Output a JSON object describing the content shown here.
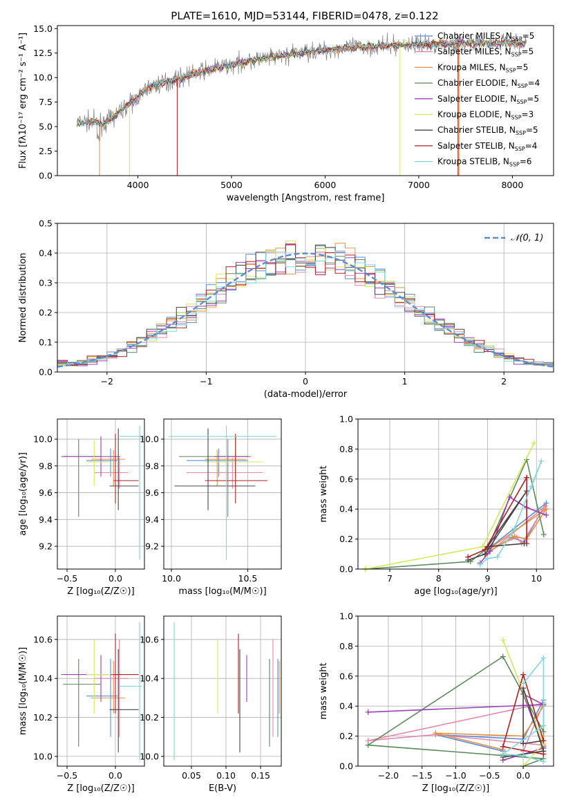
{
  "figure": {
    "title": "PLATE=1610, MJD=53144, FIBERID=0478, z=0.122"
  },
  "colors": {
    "chabrier_miles": "#5b8bd9",
    "salpeter_miles": "#e887a6",
    "kroupa_miles": "#e69040",
    "chabrier_elodie": "#5a8a5a",
    "salpeter_elodie": "#9b3fb8",
    "kroupa_elodie": "#d4e85a",
    "chabrier_stelib": "#444444",
    "salpeter_stelib": "#b01e1e",
    "kroupa_stelib": "#7fd6dc",
    "gaussian": "#5b8bd9"
  },
  "chart_data": [
    {
      "id": "spectrum",
      "type": "line",
      "title": "PLATE=1610, MJD=53144, FIBERID=0478, z=0.122",
      "xlabel": "wavelength [Angstrom, rest frame]",
      "ylabel": "Flux [fλ10⁻¹⁷ erg cm⁻² s⁻¹ A⁻¹]",
      "xlim": [
        3140,
        8440
      ],
      "ylim": [
        0,
        15.3
      ],
      "xticks": [
        "4000",
        "5000",
        "6000",
        "7000",
        "8000"
      ],
      "yticks": [
        "0.0",
        "2.5",
        "5.0",
        "7.5",
        "10.0",
        "12.5",
        "15.0"
      ],
      "grid": false,
      "legend": "right",
      "legend_entries": [
        "Chabrier MILES, N_SSP=5",
        "Salpeter MILES, N_SSP=5",
        "Kroupa MILES, N_SSP=5",
        "Chabrier ELODIE, N_SSP=4",
        "Salpeter ELODIE, N_SSP=5",
        "Kroupa ELODIE, N_SSP=3",
        "Chabrier STELIB, N_SSP=5",
        "Salpeter STELIB, N_SSP=4",
        "Kroupa STELIB, N_SSP=6"
      ],
      "continuum": {
        "x": [
          3350,
          3500,
          3650,
          3800,
          3950,
          4100,
          4250,
          4400,
          4600,
          4800,
          5000,
          5200,
          5400,
          5600,
          5800,
          6000,
          6200,
          6400,
          6600,
          6800,
          7000,
          7200,
          7400,
          7600,
          7800,
          8000,
          8150
        ],
        "y": [
          5.4,
          5.5,
          5.3,
          6.5,
          7.6,
          8.9,
          9.4,
          9.8,
          10.4,
          10.9,
          11.3,
          11.7,
          12.0,
          12.3,
          12.6,
          12.8,
          13.0,
          13.1,
          13.2,
          13.3,
          13.4,
          13.4,
          13.5,
          13.5,
          13.5,
          13.6,
          13.4
        ]
      }
    },
    {
      "id": "residuals",
      "type": "bar",
      "xlabel": "(data-model)/error",
      "ylabel": "Normed distribution",
      "xlim": [
        -2.5,
        2.5
      ],
      "ylim": [
        0,
        0.5
      ],
      "xticks": [
        "−2",
        "−1",
        "0",
        "1",
        "2"
      ],
      "yticks": [
        "0.0",
        "0.1",
        "0.2",
        "0.3",
        "0.4",
        "0.5"
      ],
      "grid": true,
      "legend": "top-right",
      "legend_label": "𝒩(0, 1)",
      "bin_width": 0.1
    },
    {
      "id": "age-vs-z",
      "type": "scatter",
      "xlabel": "Z [log₁₀(Z/Z☉)]",
      "ylabel": "age  [log₁₀(age/yr)]",
      "xlim": [
        -0.6,
        0.3
      ],
      "ylim": [
        9.03,
        10.15
      ],
      "xticks": [
        "−0.5",
        "0.0"
      ],
      "yticks": [
        "9.2",
        "9.4",
        "9.6",
        "9.8",
        "10.0"
      ],
      "grid": true
    },
    {
      "id": "age-vs-mass",
      "type": "scatter",
      "xlabel": "mass [log₁₀(M/M☉)]",
      "ylabel": "",
      "xlim": [
        9.95,
        10.72
      ],
      "ylim": [
        9.03,
        10.15
      ],
      "xticks": [
        "10.0",
        "10.5"
      ],
      "yticks": [
        "9.2",
        "9.4",
        "9.6",
        "9.8",
        "10.0"
      ],
      "grid": true
    },
    {
      "id": "weight-vs-age",
      "type": "line",
      "xlabel": "age  [log₁₀(age/yr)]",
      "ylabel": "mass weight",
      "xlim": [
        6.35,
        10.35
      ],
      "ylim": [
        0,
        1
      ],
      "xticks": [
        "7",
        "8",
        "9",
        "10"
      ],
      "yticks": [
        "0.0",
        "0.2",
        "0.4",
        "0.6",
        "0.8",
        "1.0"
      ],
      "grid": true
    },
    {
      "id": "mass-vs-z",
      "type": "scatter",
      "xlabel": "Z [log₁₀(Z/Z☉)]",
      "ylabel": "mass [log₁₀(M/M☉)]",
      "xlim": [
        -0.6,
        0.3
      ],
      "ylim": [
        9.95,
        10.72
      ],
      "xticks": [
        "−0.5",
        "0.0"
      ],
      "yticks": [
        "10.0",
        "10.2",
        "10.4",
        "10.6"
      ],
      "grid": true
    },
    {
      "id": "mass-vs-ebv",
      "type": "scatter",
      "xlabel": "E(B-V)",
      "ylabel": "",
      "xlim": [
        0.01,
        0.18
      ],
      "ylim": [
        9.95,
        10.72
      ],
      "xticks": [
        "0.05",
        "0.10",
        "0.15"
      ],
      "yticks": [
        "10.0",
        "10.2",
        "10.4",
        "10.6"
      ],
      "grid": true
    },
    {
      "id": "weight-vs-z",
      "type": "line",
      "xlabel": "Z [log₁₀(Z/Z☉)]",
      "ylabel": "mass weight",
      "xlim": [
        -2.45,
        0.45
      ],
      "ylim": [
        0,
        1
      ],
      "xticks": [
        "−2.0",
        "−1.5",
        "−1.0",
        "−0.5",
        "0.0"
      ],
      "yticks": [
        "0.0",
        "0.2",
        "0.4",
        "0.6",
        "0.8",
        "1.0"
      ],
      "grid": true
    }
  ],
  "fits": [
    {
      "key": "chabrier_miles",
      "Z": [
        -0.3,
        -0.05,
        0.02
      ],
      "age": [
        9.72,
        9.84,
        9.93
      ],
      "mass": [
        10.1,
        10.31,
        10.5
      ],
      "ebv": 0.175
    },
    {
      "key": "salpeter_miles",
      "Z": [
        -0.22,
        0.04,
        0.13
      ],
      "age": [
        9.63,
        9.75,
        9.86
      ],
      "mass": [
        10.1,
        10.4,
        10.6
      ],
      "ebv": 0.168
    },
    {
      "key": "kroupa_miles",
      "Z": [
        -0.25,
        -0.02,
        0.1
      ],
      "age": [
        9.65,
        9.85,
        9.92
      ],
      "mass": [
        10.22,
        10.3,
        10.49
      ],
      "ebv": 0.177
    },
    {
      "key": "chabrier_elodie",
      "Z": [
        -0.54,
        -0.38,
        -0.15
      ],
      "age": [
        9.42,
        9.87,
        10.0
      ],
      "mass": [
        10.05,
        10.37,
        10.5
      ],
      "ebv": 0.163
    },
    {
      "key": "salpeter_elodie",
      "Z": [
        -0.56,
        -0.15,
        0.05
      ],
      "age": [
        9.72,
        9.87,
        10.02
      ],
      "mass": [
        10.28,
        10.42,
        10.52
      ],
      "ebv": 0.13
    },
    {
      "key": "kroupa_elodie",
      "Z": [
        -0.3,
        -0.22,
        -0.05
      ],
      "age": [
        9.65,
        9.83,
        9.99
      ],
      "mass": [
        10.22,
        10.42,
        10.6
      ],
      "ebv": 0.088
    },
    {
      "key": "chabrier_stelib",
      "Z": [
        -0.06,
        0.03,
        0.24
      ],
      "age": [
        9.47,
        9.65,
        10.08
      ],
      "mass": [
        10.02,
        10.24,
        10.55
      ],
      "ebv": 0.12
    },
    {
      "key": "salpeter_stelib",
      "Z": [
        -0.02,
        0.0,
        0.24
      ],
      "age": [
        9.52,
        9.69,
        10.04
      ],
      "mass": [
        10.22,
        10.42,
        10.63
      ],
      "ebv": 0.118
    },
    {
      "key": "kroupa_stelib",
      "Z": [
        0.04,
        0.25,
        0.27
      ],
      "age": [
        9.1,
        10.02,
        10.1
      ],
      "mass": [
        9.98,
        10.36,
        10.69
      ],
      "ebv": 0.025
    }
  ],
  "weights": [
    {
      "key": "chabrier_miles",
      "pts": [
        [
          8.95,
          0.1,
          -0.3
        ],
        [
          9.5,
          0.21,
          -1.3
        ],
        [
          9.75,
          0.18,
          0.0
        ],
        [
          10.2,
          0.44,
          0.3
        ],
        [
          9.0,
          0.13,
          0.3
        ]
      ]
    },
    {
      "key": "salpeter_miles",
      "pts": [
        [
          9.05,
          0.14,
          0.3
        ],
        [
          9.6,
          0.21,
          -1.3
        ],
        [
          9.7,
          0.17,
          -2.3
        ],
        [
          10.18,
          0.42,
          0.3
        ],
        [
          9.0,
          0.1,
          0.0
        ]
      ]
    },
    {
      "key": "kroupa_miles",
      "pts": [
        [
          9.0,
          0.11,
          -0.3
        ],
        [
          9.55,
          0.22,
          -1.3
        ],
        [
          9.8,
          0.2,
          0.0
        ],
        [
          10.2,
          0.4,
          0.3
        ],
        [
          9.05,
          0.14,
          0.3
        ]
      ]
    },
    {
      "key": "chabrier_elodie",
      "pts": [
        [
          6.5,
          0.0,
          0.0
        ],
        [
          8.65,
          0.05,
          0.3
        ],
        [
          9.0,
          0.14,
          -2.3
        ],
        [
          9.8,
          0.73,
          -0.3
        ],
        [
          10.15,
          0.23,
          0.3
        ]
      ]
    },
    {
      "key": "salpeter_elodie",
      "pts": [
        [
          8.85,
          0.04,
          -0.3
        ],
        [
          9.05,
          0.12,
          0.3
        ],
        [
          9.45,
          0.48,
          0.0
        ],
        [
          9.8,
          0.41,
          0.3
        ],
        [
          10.2,
          0.36,
          -2.3
        ]
      ]
    },
    {
      "key": "kroupa_elodie",
      "pts": [
        [
          6.5,
          0.0,
          0.0
        ],
        [
          8.9,
          0.15,
          0.3
        ],
        [
          9.95,
          0.84,
          -0.3
        ]
      ]
    },
    {
      "key": "chabrier_stelib",
      "pts": [
        [
          8.6,
          0.06,
          -0.3
        ],
        [
          8.95,
          0.1,
          0.3
        ],
        [
          9.8,
          0.52,
          0.0
        ],
        [
          9.0,
          0.15,
          0.0
        ],
        [
          9.75,
          0.17,
          0.3
        ]
      ]
    },
    {
      "key": "salpeter_stelib",
      "pts": [
        [
          8.6,
          0.08,
          0.3
        ],
        [
          8.95,
          0.13,
          -0.3
        ],
        [
          9.8,
          0.61,
          0.0
        ],
        [
          9.8,
          0.17,
          0.3
        ]
      ]
    },
    {
      "key": "kroupa_stelib",
      "pts": [
        [
          8.85,
          0.03,
          0.3
        ],
        [
          9.0,
          0.07,
          0.0
        ],
        [
          9.2,
          0.08,
          -0.3
        ],
        [
          9.55,
          0.27,
          0.3
        ],
        [
          10.1,
          0.72,
          0.3
        ],
        [
          9.9,
          0.55,
          0.0
        ]
      ]
    }
  ]
}
